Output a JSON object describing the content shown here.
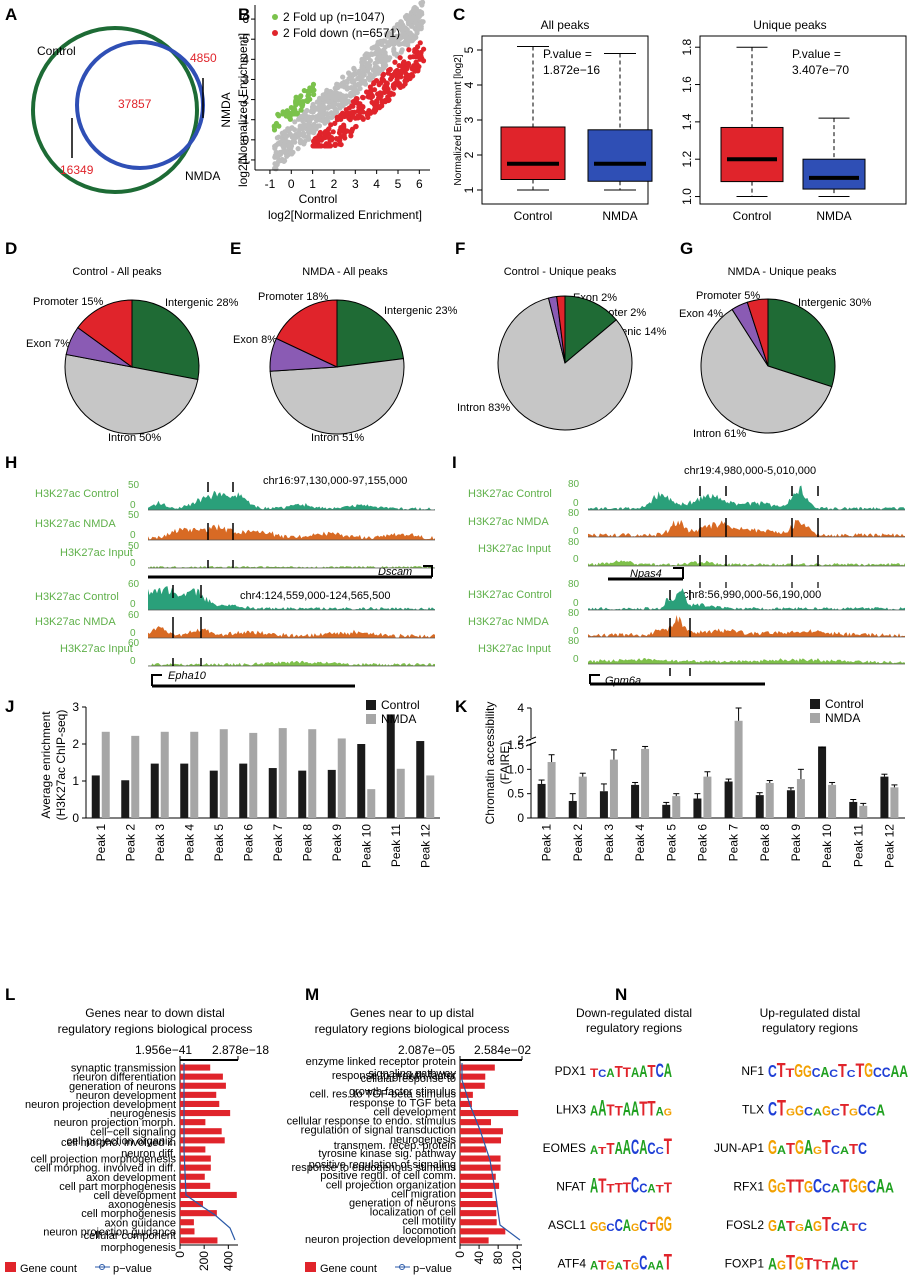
{
  "panels": {
    "A": {
      "label": "A",
      "control_label": "Control",
      "nmda_label": "NMDA",
      "control_only": "16349",
      "overlap": "37857",
      "nmda_only": "4850"
    },
    "B": {
      "label": "B",
      "legend": [
        "2 Fold up (n=1047)",
        "2 Fold down (n=6571)"
      ],
      "ylabel1": "NMDA",
      "ylabel2": "log2[Normalized Enrichment]",
      "xlabel1": "Control",
      "xlabel2": "log2[Normalized Enrichment]",
      "xticks": [
        "-1",
        "0",
        "1",
        "2",
        "3",
        "4",
        "5",
        "6"
      ],
      "yticks": [
        "6",
        "5",
        "4",
        "3",
        "2",
        "1",
        "0",
        "-1"
      ]
    },
    "C": {
      "label": "C",
      "ylabel": "Normalized Enrichemnt [log2]",
      "left_title": "All peaks",
      "right_title": "Unique peaks",
      "left_pvalue": [
        "P.value =",
        "1.872e−16"
      ],
      "right_pvalue": [
        "P.value =",
        "3.407e−70"
      ],
      "left_yticks": [
        "5",
        "4",
        "3",
        "2",
        "1"
      ],
      "right_yticks": [
        "1.8",
        "1.6",
        "1.4",
        "1.2",
        "1.0"
      ],
      "groups": [
        "Control",
        "NMDA"
      ]
    },
    "D": {
      "label": "D",
      "title": "Control - All peaks",
      "slices": [
        "Promoter 15%",
        "Intergenic 28%",
        "Exon 7%",
        "Intron 50%"
      ]
    },
    "E": {
      "label": "E",
      "title": "NMDA - All peaks",
      "slices": [
        "Promoter 18%",
        "Intergenic 23%",
        "Exon 8%",
        "Intron 51%"
      ]
    },
    "F": {
      "label": "F",
      "title": "Control - Unique peaks",
      "slices": [
        "Exon 2%",
        "Promoter 2%",
        "Intergenic 14%",
        "Intron 83%"
      ]
    },
    "G": {
      "label": "G",
      "title": "NMDA - Unique peaks",
      "slices": [
        "Promoter 5%",
        "Intergenic 30%",
        "Exon 4%",
        "Intron 61%"
      ]
    },
    "H": {
      "label": "H",
      "tracks": [
        "H3K27ac Control",
        "H3K27ac NMDA",
        "H3K27ac Input",
        "H3K27ac Control",
        "H3K27ac NMDA",
        "H3K27ac Input"
      ],
      "coord1": "chr16:97,130,000-97,155,000",
      "coord2": "chr4:124,559,000-124,565,500",
      "gene1": "Dscam",
      "gene2": "Epha10",
      "scale1": [
        "50",
        "0",
        "50",
        "0",
        "50",
        "0"
      ],
      "scale2": [
        "60",
        "0",
        "60",
        "0",
        "60",
        "0"
      ]
    },
    "I": {
      "label": "I",
      "tracks": [
        "H3K27ac Control",
        "H3K27ac NMDA",
        "H3K27ac Input",
        "H3K27ac Control",
        "H3K27ac NMDA",
        "H3K27ac Input"
      ],
      "coord1": "chr19:4,980,000-5,010,000",
      "coord2": "chr8:56,990,000-56,190,000",
      "gene1": "Npas4",
      "gene2": "Gpm6a",
      "scale1": [
        "80",
        "0",
        "80",
        "0",
        "80",
        "0"
      ],
      "scale2": [
        "80",
        "0",
        "80",
        "0",
        "80",
        "0"
      ]
    },
    "L": {
      "label": "L",
      "title": [
        "Genes near to down distal",
        "regulatory regions biological process"
      ],
      "ptick": [
        "1.956e−41",
        "2.878e−18"
      ],
      "xticks": [
        "0",
        "200",
        "400"
      ],
      "legend": [
        "Gene count",
        "p−value"
      ]
    },
    "M": {
      "label": "M",
      "title": [
        "Genes near to up distal",
        "regulatory regions biological process"
      ],
      "ptick": [
        "2.087e−05",
        "2.584e−02"
      ],
      "xticks": [
        "0",
        "40",
        "80",
        "120"
      ],
      "legend": [
        "Gene count",
        "p−value"
      ]
    },
    "N": {
      "label": "N",
      "down_title": [
        "Down-regulated distal",
        "regulatory regions"
      ],
      "up_title": [
        "Up-regulated distal",
        "regulatory regions"
      ],
      "down": [
        {
          "tf": "PDX1",
          "motif": "TCATTAATCA"
        },
        {
          "tf": "LHX3",
          "motif": "AATTAATTAG"
        },
        {
          "tf": "EOMES",
          "motif": "ATTAACACCT"
        },
        {
          "tf": "NFAT",
          "motif": "ATTTTCCATT"
        },
        {
          "tf": "ASCL1",
          "motif": "GGCCAGCTGG"
        },
        {
          "tf": "ATF4",
          "motif": "ATGATGCAAT"
        }
      ],
      "up": [
        {
          "tf": "NF1",
          "motif": "CTTGGCACTCTGCCAA"
        },
        {
          "tf": "TLX",
          "motif": "CTGGCAGCTGCCA"
        },
        {
          "tf": "JUN-AP1",
          "motif": "GATGAGTCATC"
        },
        {
          "tf": "RFX1",
          "motif": "GGTTGCCATGGCAA"
        },
        {
          "tf": "FOSL2",
          "motif": "GATGAGTCATC"
        },
        {
          "tf": "FOXP1",
          "motif": "AGTGTTTACT"
        }
      ]
    },
    "J": {
      "label": "J"
    },
    "K": {
      "label": "K"
    }
  },
  "chart_data": [
    {
      "type": "venn",
      "sets": [
        "Control",
        "NMDA"
      ],
      "values": {
        "control_only": 16349,
        "both": 37857,
        "nmda_only": 4850
      },
      "colors": {
        "Control": "#1d6b35",
        "NMDA": "#2f4fb5",
        "numbers": "#e0242b"
      }
    },
    {
      "type": "scatter",
      "xlabel": "Control log2[Normalized Enrichment]",
      "ylabel": "NMDA log2[Normalized Enrichment]",
      "xlim": [
        -1.7,
        6.5
      ],
      "ylim": [
        -1.5,
        6.7
      ],
      "series": [
        {
          "name": "2 Fold up (n=1047)",
          "color": "#7bc24c"
        },
        {
          "name": "2 Fold down (n=6571)",
          "color": "#e0242b"
        }
      ]
    },
    {
      "type": "box",
      "title": "All peaks",
      "ylim": [
        0.6,
        5.4
      ],
      "boxes": [
        {
          "group": "Control",
          "whisker_low": 1.0,
          "q1": 1.3,
          "median": 1.75,
          "q3": 2.8,
          "whisker_high": 5.1,
          "color": "#e0242b"
        },
        {
          "group": "NMDA",
          "whisker_low": 1.0,
          "q1": 1.25,
          "median": 1.75,
          "q3": 2.72,
          "whisker_high": 4.9,
          "color": "#2f4fb5"
        }
      ]
    },
    {
      "type": "box",
      "title": "Unique peaks",
      "ylim": [
        0.96,
        1.86
      ],
      "boxes": [
        {
          "group": "Control",
          "whisker_low": 1.0,
          "q1": 1.08,
          "median": 1.2,
          "q3": 1.37,
          "whisker_high": 1.8,
          "color": "#e0242b"
        },
        {
          "group": "NMDA",
          "whisker_low": 1.0,
          "q1": 1.04,
          "median": 1.1,
          "q3": 1.2,
          "whisker_high": 1.42,
          "color": "#2f4fb5"
        }
      ]
    },
    {
      "type": "pie",
      "title": "Control - All peaks",
      "labels": [
        "Intergenic",
        "Intron",
        "Exon",
        "Promoter"
      ],
      "values": [
        28,
        50,
        7,
        15
      ]
    },
    {
      "type": "pie",
      "title": "NMDA - All peaks",
      "labels": [
        "Intergenic",
        "Intron",
        "Exon",
        "Promoter"
      ],
      "values": [
        23,
        51,
        8,
        18
      ]
    },
    {
      "type": "pie",
      "title": "Control - Unique peaks",
      "labels": [
        "Intergenic",
        "Intron",
        "Exon",
        "Promoter"
      ],
      "values": [
        14,
        83,
        2,
        2
      ]
    },
    {
      "type": "pie",
      "title": "NMDA - Unique peaks",
      "labels": [
        "Intergenic",
        "Intron",
        "Exon",
        "Promoter"
      ],
      "values": [
        30,
        61,
        4,
        5
      ]
    },
    {
      "type": "bar",
      "ylabel": "Average enrichment (H3K27ac ChIP-seq)",
      "categories": [
        "Peak 1",
        "Peak 2",
        "Peak 3",
        "Peak 4",
        "Peak 5",
        "Peak 6",
        "Peak 7",
        "Peak 8",
        "Peak 9",
        "Peak 10",
        "Peak 11",
        "Peak 12"
      ],
      "ylim": [
        0,
        3
      ],
      "series": [
        {
          "name": "Control",
          "color": "#1a1a1a",
          "values": [
            1.15,
            1.02,
            1.47,
            1.47,
            1.28,
            1.47,
            1.35,
            1.28,
            1.3,
            2.0,
            2.8,
            2.08
          ]
        },
        {
          "name": "NMDA",
          "color": "#a6a6a6",
          "values": [
            2.33,
            2.22,
            2.33,
            2.33,
            2.4,
            2.3,
            2.43,
            2.4,
            2.15,
            0.78,
            1.33,
            1.15
          ]
        }
      ]
    },
    {
      "type": "bar",
      "ylabel": "Chromatin accessibility (FAIRE)",
      "categories": [
        "Peak 1",
        "Peak 2",
        "Peak 3",
        "Peak 4",
        "Peak 5",
        "Peak 6",
        "Peak 7",
        "Peak 8",
        "Peak 9",
        "Peak 10",
        "Peak 11",
        "Peak 12"
      ],
      "y_axis": "broken at 1.5 and 2, continuing to 4",
      "series": [
        {
          "name": "Control",
          "color": "#1a1a1a",
          "values": [
            0.7,
            0.35,
            0.55,
            0.68,
            0.27,
            0.4,
            0.75,
            0.47,
            0.57,
            1.47,
            0.33,
            0.85
          ],
          "errors": [
            0.08,
            0.15,
            0.15,
            0.05,
            0.05,
            0.1,
            0.05,
            0.05,
            0.05,
            0.05,
            0.05,
            0.05
          ]
        },
        {
          "name": "NMDA",
          "color": "#a6a6a6",
          "values": [
            1.15,
            0.85,
            1.2,
            1.42,
            0.45,
            0.85,
            3.2,
            0.72,
            0.8,
            0.68,
            0.25,
            0.63
          ],
          "errors": [
            0.15,
            0.07,
            0.2,
            0.05,
            0.05,
            0.1,
            0.8,
            0.05,
            0.2,
            0.05,
            0.05,
            0.05
          ]
        }
      ]
    },
    {
      "type": "bar",
      "orientation": "horizontal",
      "title": "Genes near to down distal regulatory regions biological process",
      "categories": [
        "synaptic transmission",
        "neuron differentiation",
        "generation of neurons",
        "neuron development",
        "neuron projection development",
        "neurogenesis",
        "neuron projection morph.",
        "cell−cell signaling",
        "cell projection organiz.",
        "cell morpho. involved in neuron diff.",
        "cell projection morphogenesis",
        "cell morphog. involved in diff.",
        "axon development",
        "cell part morphogenesis",
        "cell development",
        "axonogenesis",
        "cell morphogenesis",
        "axon guidance",
        "neuron projection guidance",
        "cellular component morphogenesis"
      ],
      "xlim": [
        0,
        480
      ],
      "series": [
        {
          "name": "Gene count",
          "color": "#e0242b",
          "values": [
            250,
            355,
            380,
            300,
            325,
            415,
            210,
            345,
            370,
            210,
            255,
            255,
            205,
            250,
            470,
            190,
            305,
            115,
            120,
            310
          ]
        }
      ],
      "pvalue_range": [
        "1.956e−41",
        "2.878e−18"
      ]
    },
    {
      "type": "bar",
      "orientation": "horizontal",
      "title": "Genes near to up distal regulatory regions biological process",
      "categories": [
        "enzyme linked receptor protein signaling pathway",
        "response to growth factor",
        "cellular response to growth factor stimulus",
        "cell. res. to TGF-beta stimulus",
        "response to TGF beta",
        "cell development",
        "cellular response to endo. stimulus",
        "regulation of signal transduction",
        "neurogenesis",
        "transmem. recep. protein tyrosine kinase sig. pathway",
        "positive regulation of signaling",
        "response to endogenous stimulus",
        "positive regul. of cell  comm.",
        "cell projection organization",
        "cell migration",
        "generation of neurons",
        "localization of cell",
        "cell motility",
        "locomotion",
        "neuron projection development"
      ],
      "xlim": [
        0,
        130
      ],
      "series": [
        {
          "name": "Gene count",
          "color": "#e0242b",
          "values": [
            73,
            53,
            52,
            27,
            25,
            122,
            65,
            90,
            86,
            55,
            85,
            85,
            75,
            82,
            68,
            78,
            76,
            77,
            95,
            60
          ]
        }
      ],
      "pvalue_range": [
        "2.087e−05",
        "2.584e−02"
      ]
    }
  ]
}
